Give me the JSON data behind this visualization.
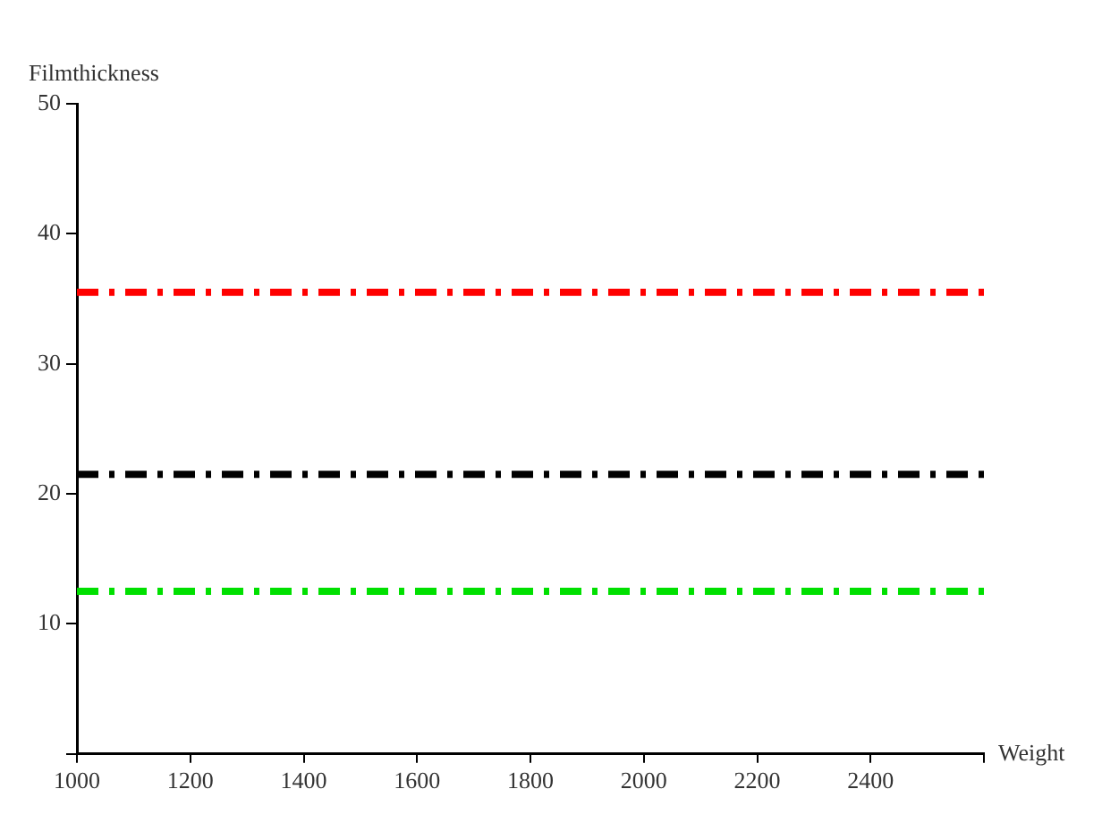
{
  "chart_data": {
    "type": "line",
    "xlabel": "Weight",
    "ylabel": "Filmthickness",
    "x": [
      1000,
      2600
    ],
    "series": [
      {
        "color": "#ff0000",
        "values": [
          35.5,
          35.5
        ]
      },
      {
        "color": "#000000",
        "values": [
          21.5,
          21.5
        ]
      },
      {
        "color": "#00e000",
        "values": [
          12.5,
          12.5
        ]
      }
    ],
    "xlim": [
      1000,
      2600
    ],
    "ylim": [
      0,
      50
    ],
    "xticks": [
      1000,
      1200,
      1400,
      1600,
      1800,
      2000,
      2200,
      2400,
      {
        "value": 2600,
        "label": null
      }
    ],
    "yticks": [
      {
        "value": 0,
        "label": null
      },
      10,
      20,
      30,
      40,
      50
    ],
    "grid": false,
    "legend": false,
    "marker": "none",
    "line_style": "dashed"
  }
}
